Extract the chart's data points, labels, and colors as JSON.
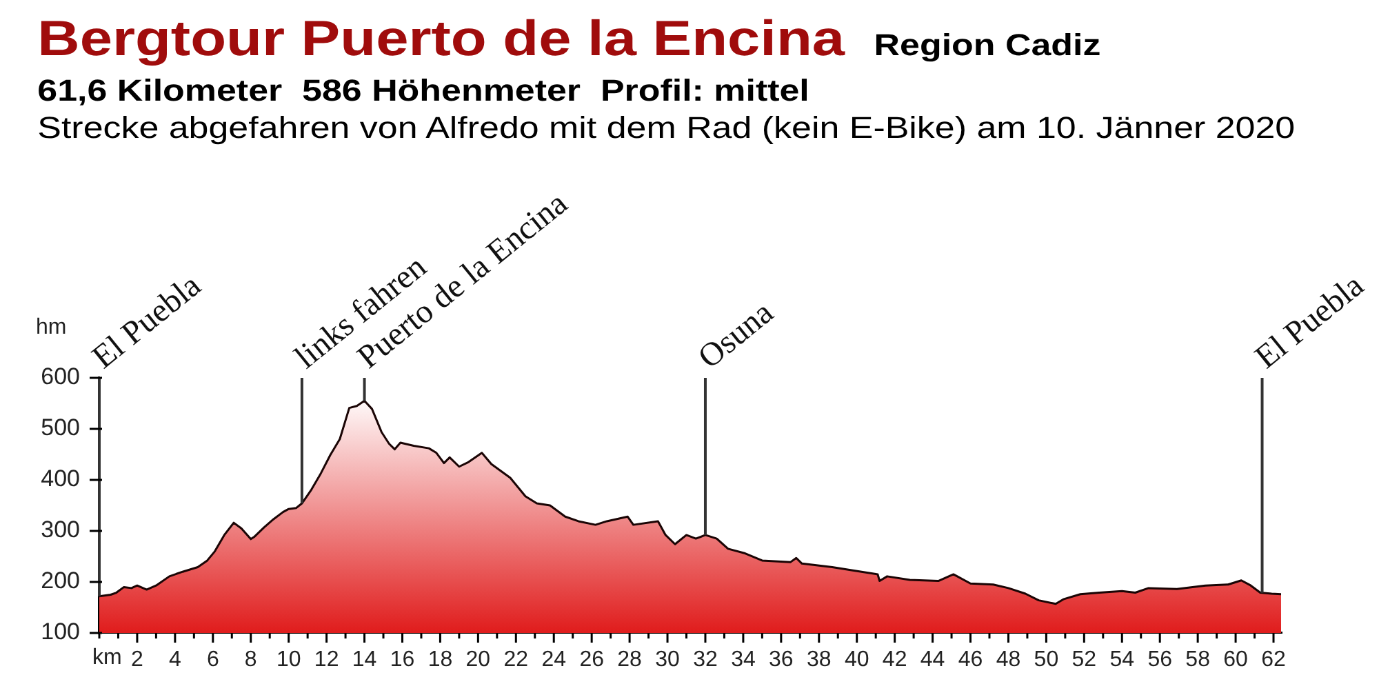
{
  "chart_data": {
    "type": "area",
    "title": "Bergtour Puerto de la Encina",
    "subtitle": "61,6 Kilometer  586 Höhenmeter  Profil: mittel",
    "annotations": [
      "Region Cadiz",
      "Strecke abgefahren von Alfredo mit dem Rad (kein E-Bike) am 10. Jänner 2020"
    ],
    "xlabel": "km",
    "ylabel": "hm",
    "color": "#e01c1c",
    "x": [
      0,
      0.6,
      0.9,
      1.3,
      1.7,
      2,
      2.5,
      3,
      3.7,
      4.4,
      5.2,
      5.7,
      6.1,
      6.6,
      7.1,
      7.5,
      8,
      8.2,
      8.7,
      9.2,
      9.7,
      10,
      10.4,
      10.7,
      11.2,
      11.7,
      12.2,
      12.7,
      13.2,
      13.6,
      14,
      14.4,
      14.9,
      15.3,
      15.6,
      15.9,
      16.6,
      17.4,
      17.8,
      18.2,
      18.5,
      19,
      19.5,
      20.2,
      20.7,
      21.7,
      22.5,
      23.1,
      23.8,
      24.6,
      25.3,
      26.2,
      26.8,
      27.9,
      28.2,
      29.5,
      29.9,
      30.4,
      31,
      31.5,
      32,
      32.6,
      33.2,
      34.1,
      35,
      36.5,
      36.8,
      37.1,
      38.7,
      39.9,
      41.1,
      41.2,
      41.6,
      42.8,
      44.3,
      45.1,
      46,
      47.2,
      48,
      48.9,
      49.6,
      50.5,
      50.9,
      51.8,
      52.8,
      54,
      54.7,
      55.4,
      56.9,
      58.4,
      59.6,
      60.3,
      60.8,
      61.3,
      61.9,
      62.4
    ],
    "values": [
      172,
      175,
      179,
      190,
      188,
      193,
      185,
      193,
      211,
      220,
      229,
      242,
      260,
      292,
      316,
      305,
      284,
      289,
      307,
      323,
      337,
      343,
      345,
      354,
      381,
      413,
      449,
      480,
      541,
      545,
      555,
      539,
      494,
      471,
      460,
      473,
      467,
      462,
      453,
      433,
      444,
      426,
      435,
      453,
      431,
      404,
      368,
      354,
      350,
      328,
      319,
      312,
      319,
      328,
      312,
      319,
      292,
      274,
      292,
      285,
      292,
      285,
      265,
      256,
      242,
      239,
      247,
      236,
      229,
      222,
      215,
      202,
      211,
      204,
      202,
      215,
      197,
      195,
      188,
      177,
      164,
      157,
      166,
      176,
      179,
      182,
      179,
      188,
      186,
      193,
      195,
      203,
      193,
      179,
      177,
      176
    ],
    "xlim": [
      0,
      62.4
    ],
    "xticks": [
      {
        "value": 0,
        "label": null
      },
      {
        "value": 1,
        "label": null
      },
      2,
      {
        "value": 3,
        "label": null
      },
      4,
      {
        "value": 5,
        "label": null
      },
      6,
      {
        "value": 7,
        "label": null
      },
      8,
      {
        "value": 9,
        "label": null
      },
      10,
      {
        "value": 11,
        "label": null
      },
      12,
      {
        "value": 13,
        "label": null
      },
      14,
      {
        "value": 15,
        "label": null
      },
      16,
      {
        "value": 17,
        "label": null
      },
      18,
      {
        "value": 19,
        "label": null
      },
      20,
      {
        "value": 21,
        "label": null
      },
      22,
      {
        "value": 23,
        "label": null
      },
      24,
      {
        "value": 25,
        "label": null
      },
      26,
      {
        "value": 27,
        "label": null
      },
      28,
      {
        "value": 29,
        "label": null
      },
      30,
      {
        "value": 31,
        "label": null
      },
      32,
      {
        "value": 33,
        "label": null
      },
      34,
      {
        "value": 35,
        "label": null
      },
      36,
      {
        "value": 37,
        "label": null
      },
      38,
      {
        "value": 39,
        "label": null
      },
      40,
      {
        "value": 41,
        "label": null
      },
      42,
      {
        "value": 43,
        "label": null
      },
      44,
      {
        "value": 45,
        "label": null
      },
      46,
      {
        "value": 47,
        "label": null
      },
      48,
      {
        "value": 49,
        "label": null
      },
      50,
      {
        "value": 51,
        "label": null
      },
      52,
      {
        "value": 53,
        "label": null
      },
      54,
      {
        "value": 55,
        "label": null
      },
      56,
      {
        "value": 57,
        "label": null
      },
      58,
      {
        "value": 59,
        "label": null
      },
      60,
      {
        "value": 61,
        "label": null
      },
      62
    ],
    "ylim": [
      100,
      600
    ],
    "yticks": [
      100,
      200,
      300,
      400,
      500,
      600
    ],
    "ref_lines": [
      {
        "axis": "x",
        "value": 0,
        "label": "El Puebla",
        "color": "#333333"
      },
      {
        "axis": "x",
        "value": 10.7,
        "label": "links fahren",
        "color": "#333333"
      },
      {
        "axis": "x",
        "value": 14,
        "label": "Puerto de la Encina",
        "color": "#333333"
      },
      {
        "axis": "x",
        "value": 32,
        "label": "Osuna",
        "color": "#333333"
      },
      {
        "axis": "x",
        "value": 61.4,
        "label": "El Puebla",
        "color": "#333333"
      }
    ]
  }
}
